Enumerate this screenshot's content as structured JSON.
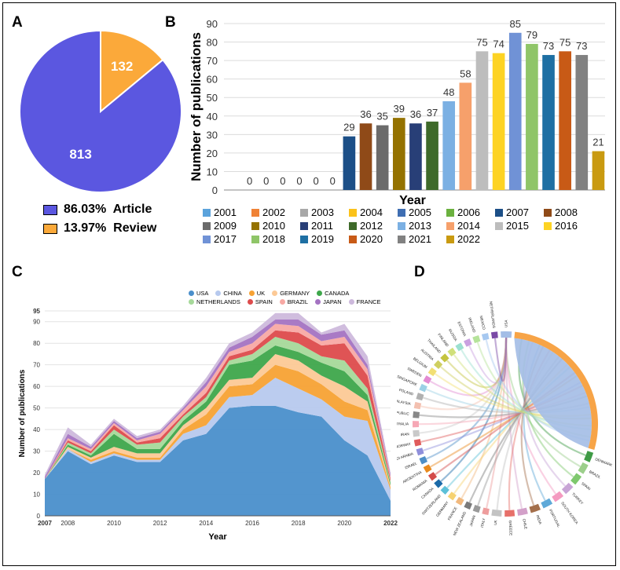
{
  "panels": {
    "a": "A",
    "b": "B",
    "c": "C",
    "d": "D"
  },
  "chart_data": [
    {
      "type": "pie",
      "categories": [
        "Article",
        "Review"
      ],
      "values": [
        813,
        132
      ],
      "value_labels": [
        "813",
        "132"
      ],
      "colors": [
        "#5b57e0",
        "#fba93a"
      ],
      "legend": [
        {
          "text": "86.03%  Article",
          "color": "#5b57e0"
        },
        {
          "text": "13.97%  Review",
          "color": "#fba93a"
        }
      ]
    },
    {
      "type": "bar",
      "ylabel": "Number of publications",
      "xlabel": "Year",
      "ylim": [
        0,
        90
      ],
      "yticks": [
        "0",
        "10",
        "20",
        "30",
        "40",
        "50",
        "60",
        "70",
        "80",
        "90"
      ],
      "categories": [
        "2001",
        "2002",
        "2003",
        "2004",
        "2005",
        "2006",
        "2007",
        "2008",
        "2009",
        "2010",
        "2011",
        "2012",
        "2013",
        "2014",
        "2015",
        "2016",
        "2017",
        "2018",
        "2019",
        "2020",
        "2021",
        "2022"
      ],
      "values": [
        0,
        0,
        0,
        0,
        0,
        0,
        29,
        36,
        35,
        39,
        36,
        37,
        48,
        58,
        75,
        74,
        85,
        79,
        73,
        75,
        73,
        21
      ],
      "colors": [
        "#5ba3dc",
        "#ef8236",
        "#a8a8a8",
        "#fbc21a",
        "#3f6eb2",
        "#6bb13f",
        "#1c4f87",
        "#8f4a18",
        "#6b6b6b",
        "#947200",
        "#283f77",
        "#3e6a2a",
        "#7bb0e3",
        "#f6a06b",
        "#bdbdbd",
        "#fdd324",
        "#7092d6",
        "#8fc568",
        "#1e6fa3",
        "#c85a16",
        "#818181",
        "#c99a10"
      ]
    },
    {
      "type": "area",
      "ylabel": "Number of publications",
      "xlabel": "Year",
      "ylim": [
        0,
        95
      ],
      "yticks": [
        "0",
        "10",
        "20",
        "30",
        "40",
        "50",
        "60",
        "70",
        "80",
        "90",
        "95"
      ],
      "xticks": [
        "2007",
        "2008",
        "2010",
        "2012",
        "2014",
        "2016",
        "2018",
        "2020",
        "2022"
      ],
      "x": [
        2007,
        2008,
        2009,
        2010,
        2011,
        2012,
        2013,
        2014,
        2015,
        2016,
        2017,
        2018,
        2019,
        2020,
        2021,
        2022
      ],
      "series": [
        {
          "name": "USA",
          "color": "#4a8fcb",
          "values": [
            17,
            30,
            24,
            28,
            25,
            25,
            35,
            38,
            50,
            51,
            51,
            48,
            46,
            35,
            28,
            7
          ]
        },
        {
          "name": "CHINA",
          "color": "#b7c9ee",
          "values": [
            0,
            1,
            1,
            1,
            1,
            1,
            3,
            4,
            5,
            5,
            13,
            11,
            8,
            11,
            16,
            5
          ]
        },
        {
          "name": "UK",
          "color": "#f7a234",
          "values": [
            0,
            0,
            1,
            1,
            1,
            1,
            2,
            5,
            5,
            5,
            6,
            8,
            7,
            7,
            5,
            1
          ]
        },
        {
          "name": "GERMANY",
          "color": "#fcc996",
          "values": [
            0,
            1,
            1,
            2,
            2,
            2,
            2,
            3,
            3,
            3,
            5,
            5,
            4,
            7,
            4,
            1
          ]
        },
        {
          "name": "CANADA",
          "color": "#3ea74b",
          "values": [
            0,
            1,
            1,
            6,
            2,
            2,
            2,
            3,
            7,
            8,
            4,
            4,
            6,
            7,
            3,
            1
          ]
        },
        {
          "name": "NETHERLANDS",
          "color": "#a6d99a",
          "values": [
            0,
            1,
            1,
            2,
            2,
            3,
            2,
            2,
            2,
            3,
            4,
            4,
            3,
            5,
            3,
            1
          ]
        },
        {
          "name": "SPAIN",
          "color": "#dd4b4c",
          "values": [
            0,
            1,
            1,
            2,
            1,
            2,
            1,
            2,
            2,
            2,
            3,
            5,
            5,
            8,
            6,
            1
          ]
        },
        {
          "name": "BRAZIL",
          "color": "#f8a9a4",
          "values": [
            0,
            1,
            1,
            1,
            1,
            2,
            2,
            3,
            2,
            3,
            3,
            3,
            2,
            3,
            3,
            1
          ]
        },
        {
          "name": "JAPAN",
          "color": "#a473c2",
          "values": [
            1,
            2,
            1,
            1,
            1,
            1,
            1,
            2,
            2,
            3,
            2,
            3,
            3,
            3,
            2,
            1
          ]
        },
        {
          "name": "FRANCE",
          "color": "#cdb9dc",
          "values": [
            1,
            3,
            1,
            1,
            1,
            1,
            1,
            2,
            2,
            2,
            3,
            3,
            1,
            3,
            4,
            1
          ]
        }
      ]
    },
    {
      "type": "chord",
      "highlight_countries": [
        "USA",
        "CHINA",
        "DENMARK",
        "BRAZIL",
        "SPAIN",
        "TURKEY",
        "SOUTH KOREA",
        "PORTUGAL",
        "INDIA",
        "CHILE",
        "GREECE",
        "UK",
        "ITALY",
        "JAPAN",
        "NEW ZEALAND",
        "FRANCE",
        "GERMANY",
        "SWITZERLAND",
        "CANADA",
        "ROMANIA",
        "ARGENTINA",
        "ISRAEL",
        "SAUDI ARABIA",
        "NORWAY",
        "IRAN",
        "AUSTRALIA",
        "CZECH REPUBLIC",
        "MALAYSIA",
        "POLAND",
        "SINGAPORE",
        "SWEDEN",
        "BELGIUM",
        "AUSTRIA",
        "THAILAND",
        "FINLAND",
        "RUSSIA",
        "ESTONIA",
        "IRELAND",
        "MEXICO",
        "NETHERLANDS"
      ],
      "colors": [
        "#a3bde6",
        "#f7a447",
        "#3e9b45",
        "#9ccf8b",
        "#7ec86d",
        "#c8a4d6",
        "#f49ac0",
        "#5fa9d8",
        "#a46f4b",
        "#d3a0c9",
        "#e7706a",
        "#c3c3c3",
        "#ee9d9d",
        "#9a9a9a",
        "#7a7a7a",
        "#f1b97e",
        "#f6d271",
        "#5cc0d8",
        "#1b6aa8",
        "#d34a4a",
        "#e88a1e",
        "#4e8fc7",
        "#8f8fdb",
        "#e05c5c",
        "#c9c9c9",
        "#f6a7b5",
        "#888888",
        "#f3c0b0",
        "#b0b0b0",
        "#9bd0e5",
        "#e38bd2",
        "#f2df73",
        "#cfcf5f",
        "#c4c43f",
        "#d0e07a",
        "#9be0d0",
        "#c9a0e0",
        "#b5e39a",
        "#a6c8f0",
        "#7a4aa6"
      ]
    }
  ]
}
